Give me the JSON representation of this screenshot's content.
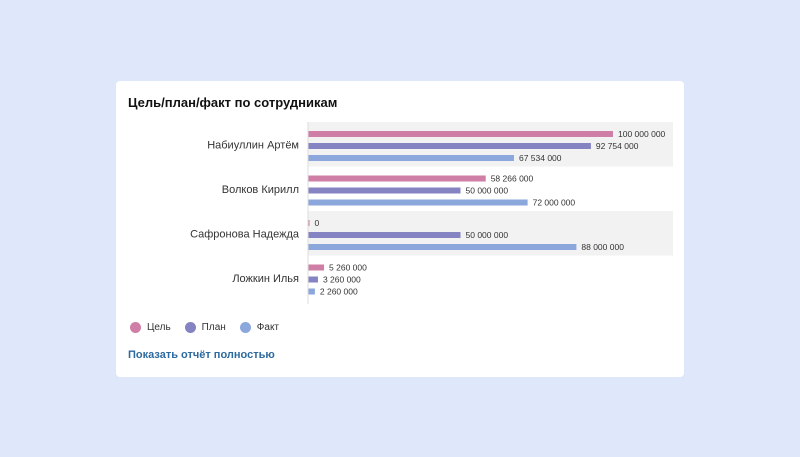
{
  "chart_data": {
    "type": "bar",
    "orientation": "horizontal",
    "title": "Цель/план/факт по сотрудникам",
    "categories": [
      "Набиуллин Артём",
      "Волков Кирилл",
      "Сафронова Надежда",
      "Ложкин Илья"
    ],
    "series": [
      {
        "name": "Цель",
        "color": "#cf7ea5",
        "values": [
          100000000,
          58266000,
          0,
          5260000
        ],
        "labels": [
          "100 000 000",
          "58 266 000",
          "0",
          "5 260 000"
        ]
      },
      {
        "name": "План",
        "color": "#8583c2",
        "values": [
          92754000,
          50000000,
          50000000,
          3260000
        ],
        "labels": [
          "92 754 000",
          "50 000 000",
          "50 000 000",
          "3 260 000"
        ]
      },
      {
        "name": "Факт",
        "color": "#8ca7dc",
        "values": [
          67534000,
          72000000,
          88000000,
          2260000
        ],
        "labels": [
          "67 534 000",
          "72 000 000",
          "88 000 000",
          "2 260 000"
        ]
      }
    ],
    "xlim": [
      0,
      120000000
    ],
    "legend": "bottom-left",
    "grid": false
  },
  "link_label": "Показать отчёт полностью"
}
